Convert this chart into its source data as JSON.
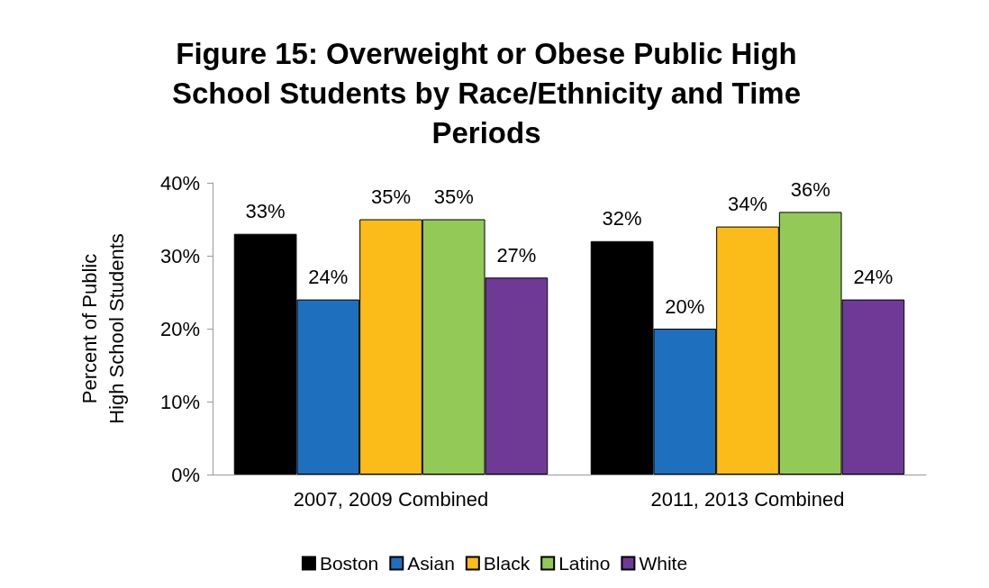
{
  "chart_data": {
    "type": "bar",
    "title": "Figure 15:  Overweight or Obese Public High School Students by Race/Ethnicity and Time Periods",
    "ylabel": "Percent of Public\nHigh School Students",
    "categories": [
      "2007, 2009 Combined",
      "2011, 2013 Combined"
    ],
    "series": [
      {
        "name": "Boston",
        "color": "#000000",
        "values": [
          33,
          32
        ],
        "value_labels": [
          "33%",
          "32%"
        ]
      },
      {
        "name": "Asian",
        "color": "#1f6fbf",
        "values": [
          24,
          20
        ],
        "value_labels": [
          "24%",
          "20%"
        ]
      },
      {
        "name": "Black",
        "color": "#fbbc1a",
        "values": [
          35,
          34
        ],
        "value_labels": [
          "35%",
          "34%"
        ]
      },
      {
        "name": "Latino",
        "color": "#92c957",
        "values": [
          35,
          36
        ],
        "value_labels": [
          "35%",
          "36%"
        ]
      },
      {
        "name": "White",
        "color": "#6f3a96",
        "values": [
          27,
          24
        ],
        "value_labels": [
          "27%",
          "24%"
        ]
      }
    ],
    "ylim": [
      0,
      40
    ],
    "yticks": [
      {
        "value": 0,
        "label": "0%"
      },
      {
        "value": 10,
        "label": "10%"
      },
      {
        "value": 20,
        "label": "20%"
      },
      {
        "value": 30,
        "label": "30%"
      },
      {
        "value": 40,
        "label": "40%"
      }
    ],
    "grid": false,
    "legend": "bottom"
  }
}
